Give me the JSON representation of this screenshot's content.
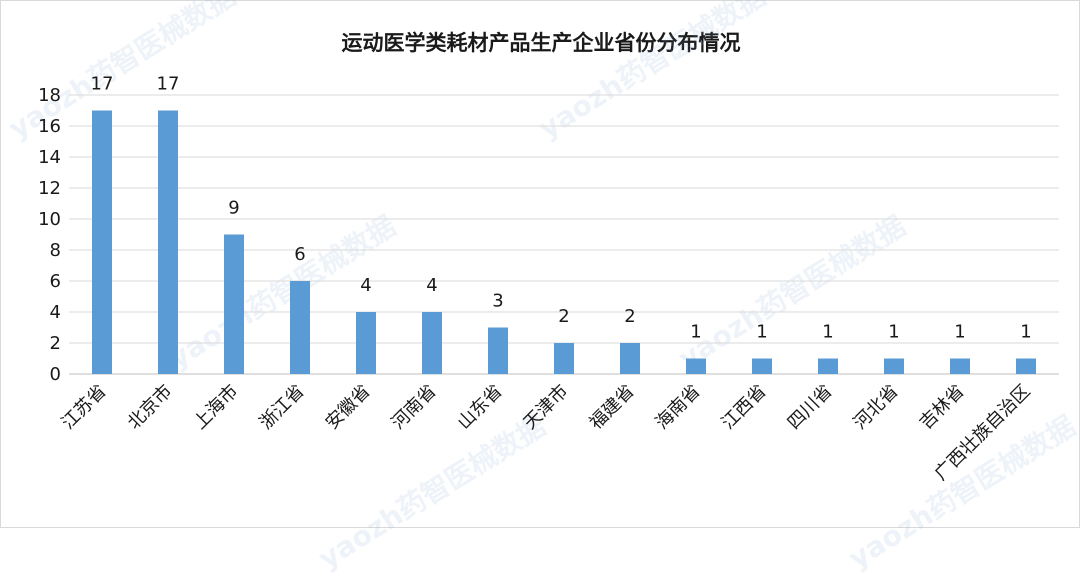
{
  "chart_data": {
    "type": "bar",
    "title": "运动医学类耗材产品生产企业省份分布情况",
    "categories": [
      "江苏省",
      "北京市",
      "上海市",
      "浙江省",
      "安徽省",
      "河南省",
      "山东省",
      "天津市",
      "福建省",
      "海南省",
      "江西省",
      "四川省",
      "河北省",
      "吉林省",
      "广西壮族自治区"
    ],
    "values": [
      17,
      17,
      9,
      6,
      4,
      4,
      3,
      2,
      2,
      1,
      1,
      1,
      1,
      1,
      1
    ],
    "ylim": [
      0,
      18
    ],
    "yticks": [
      0,
      2,
      4,
      6,
      8,
      10,
      12,
      14,
      16,
      18
    ],
    "grid": true,
    "bar_color": "#5b9bd5",
    "xlabel": "",
    "ylabel": ""
  },
  "watermark": "yaozh药智医械数据"
}
